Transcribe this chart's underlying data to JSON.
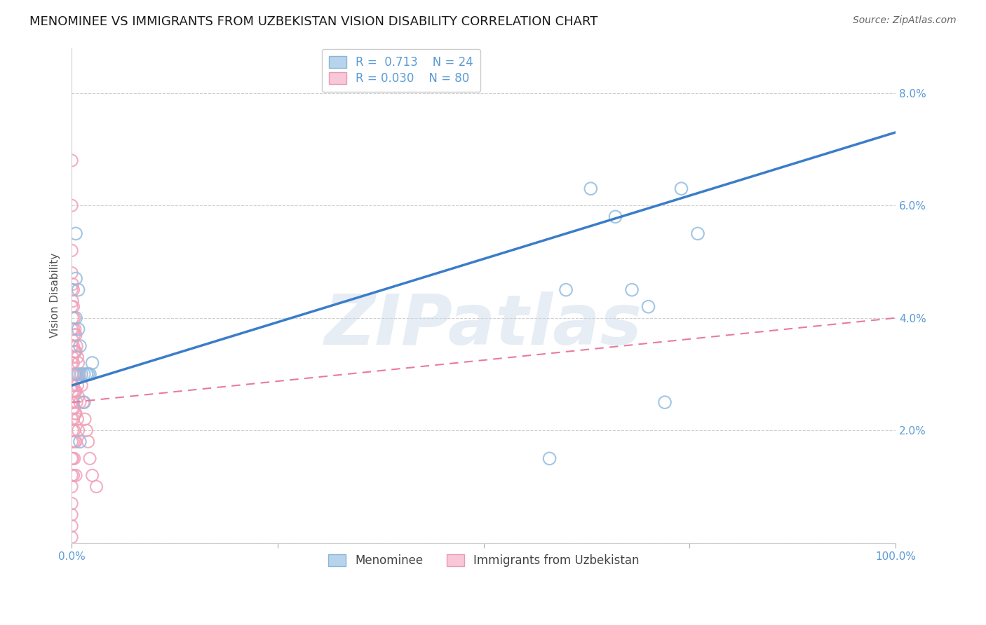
{
  "title": "MENOMINEE VS IMMIGRANTS FROM UZBEKISTAN VISION DISABILITY CORRELATION CHART",
  "source": "Source: ZipAtlas.com",
  "ylabel": "Vision Disability",
  "legend_label_blue": "Menominee",
  "legend_label_pink": "Immigrants from Uzbekistan",
  "blue_color": "#92bce0",
  "pink_color": "#f0a0b8",
  "blue_line_color": "#3a7dc9",
  "pink_line_color": "#e87aa0",
  "watermark_text": "ZIPatlas",
  "ylim": [
    0.0,
    0.088
  ],
  "xlim": [
    0.0,
    1.0
  ],
  "yticks": [
    0.0,
    0.02,
    0.04,
    0.06,
    0.08
  ],
  "ytick_labels": [
    "",
    "2.0%",
    "4.0%",
    "6.0%",
    "8.0%"
  ],
  "xticks": [
    0.0,
    0.25,
    0.5,
    0.75,
    1.0
  ],
  "xtick_labels": [
    "0.0%",
    "",
    "",
    "",
    "100.0%"
  ],
  "blue_scatter_x": [
    0.005,
    0.005,
    0.008,
    0.008,
    0.01,
    0.012,
    0.015,
    0.015,
    0.018,
    0.02,
    0.022,
    0.025,
    0.005,
    0.008,
    0.01,
    0.6,
    0.63,
    0.66,
    0.68,
    0.7,
    0.72,
    0.74,
    0.76,
    0.58
  ],
  "blue_scatter_y": [
    0.047,
    0.04,
    0.045,
    0.038,
    0.035,
    0.03,
    0.03,
    0.025,
    0.03,
    0.03,
    0.03,
    0.032,
    0.055,
    0.03,
    0.018,
    0.045,
    0.063,
    0.058,
    0.045,
    0.042,
    0.025,
    0.063,
    0.055,
    0.015
  ],
  "pink_scatter_x": [
    0.0,
    0.0,
    0.0,
    0.0,
    0.0,
    0.0,
    0.0,
    0.0,
    0.0,
    0.0,
    0.0,
    0.0,
    0.0,
    0.0,
    0.0,
    0.0,
    0.0,
    0.0,
    0.0,
    0.0,
    0.001,
    0.001,
    0.001,
    0.001,
    0.001,
    0.001,
    0.001,
    0.001,
    0.001,
    0.001,
    0.002,
    0.002,
    0.002,
    0.002,
    0.002,
    0.002,
    0.002,
    0.002,
    0.002,
    0.002,
    0.003,
    0.003,
    0.003,
    0.003,
    0.003,
    0.003,
    0.003,
    0.003,
    0.004,
    0.004,
    0.004,
    0.004,
    0.004,
    0.004,
    0.005,
    0.005,
    0.005,
    0.005,
    0.005,
    0.005,
    0.005,
    0.006,
    0.006,
    0.006,
    0.007,
    0.007,
    0.007,
    0.008,
    0.008,
    0.008,
    0.01,
    0.01,
    0.012,
    0.014,
    0.016,
    0.018,
    0.02,
    0.022,
    0.025,
    0.03
  ],
  "pink_scatter_y": [
    0.068,
    0.06,
    0.052,
    0.048,
    0.045,
    0.042,
    0.038,
    0.035,
    0.032,
    0.028,
    0.025,
    0.022,
    0.018,
    0.015,
    0.012,
    0.01,
    0.007,
    0.005,
    0.003,
    0.001,
    0.046,
    0.043,
    0.04,
    0.036,
    0.033,
    0.03,
    0.027,
    0.024,
    0.02,
    0.015,
    0.045,
    0.042,
    0.038,
    0.035,
    0.032,
    0.028,
    0.025,
    0.022,
    0.018,
    0.012,
    0.04,
    0.037,
    0.034,
    0.03,
    0.027,
    0.024,
    0.02,
    0.015,
    0.038,
    0.034,
    0.03,
    0.027,
    0.023,
    0.018,
    0.037,
    0.034,
    0.03,
    0.027,
    0.023,
    0.018,
    0.012,
    0.035,
    0.03,
    0.025,
    0.033,
    0.028,
    0.022,
    0.032,
    0.026,
    0.02,
    0.03,
    0.025,
    0.028,
    0.025,
    0.022,
    0.02,
    0.018,
    0.015,
    0.012,
    0.01
  ],
  "blue_line_x": [
    0.0,
    1.0
  ],
  "blue_line_y": [
    0.028,
    0.073
  ],
  "pink_line_x": [
    0.0,
    1.0
  ],
  "pink_line_y": [
    0.025,
    0.04
  ],
  "background_color": "#ffffff",
  "grid_color": "#d0d0d0",
  "title_color": "#1a1a1a",
  "tick_color": "#5b9bd5",
  "title_fontsize": 13,
  "label_fontsize": 11,
  "tick_fontsize": 11,
  "legend_fontsize": 12
}
